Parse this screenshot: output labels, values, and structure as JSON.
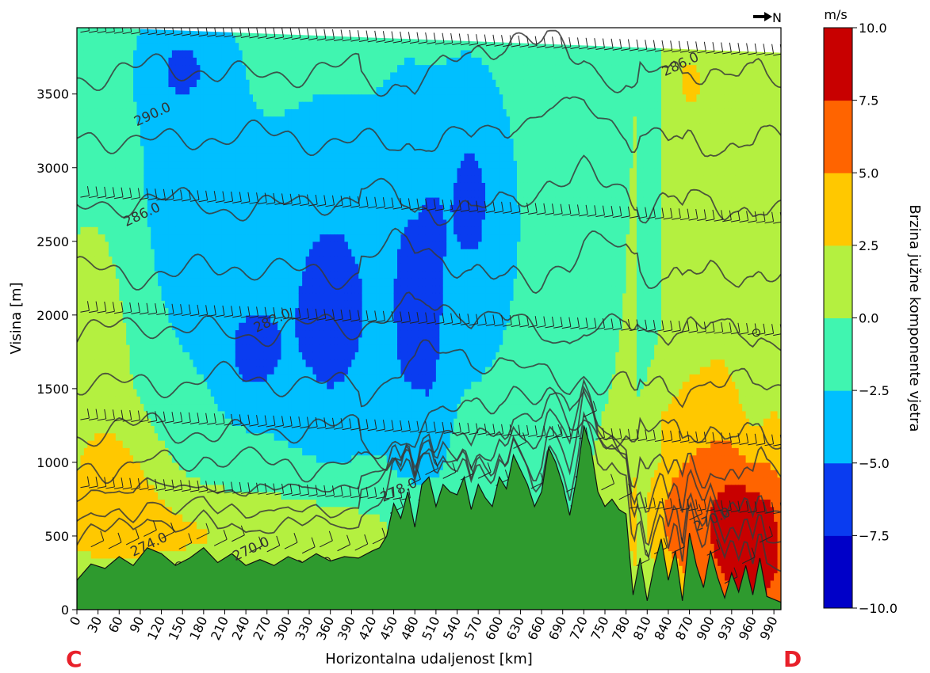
{
  "chart_data": {
    "type": "heatmap",
    "xlabel": "Horizontalna udaljenost [km]",
    "ylabel": "Visina [m]",
    "xlim": [
      0,
      1000
    ],
    "ylim": [
      0,
      3950
    ],
    "x_ticks": [
      0,
      30,
      60,
      90,
      120,
      150,
      180,
      210,
      240,
      270,
      300,
      330,
      360,
      390,
      420,
      450,
      480,
      510,
      540,
      570,
      600,
      630,
      660,
      690,
      720,
      750,
      780,
      810,
      840,
      870,
      900,
      930,
      960,
      990
    ],
    "y_ticks": [
      0,
      500,
      1000,
      1500,
      2000,
      2500,
      3000,
      3500
    ],
    "colorbar": {
      "unit": "m/s",
      "label": "Brzina južne komponente vjetra",
      "ticks": [
        "10.0",
        "7.5",
        "5.0",
        "2.5",
        "0.0",
        "−2.5",
        "−5.0",
        "−7.5",
        "−10.0"
      ],
      "levels": [
        -10,
        -7.5,
        -5,
        -2.5,
        0,
        2.5,
        5,
        7.5,
        10
      ],
      "colors": [
        "#0000c8",
        "#0a3cf0",
        "#00bfff",
        "#40f5b0",
        "#b4f040",
        "#ffc800",
        "#ff6400",
        "#c80000"
      ]
    },
    "isentrope_labels": [
      {
        "text": "290.0",
        "x": 85,
        "y": 3280
      },
      {
        "text": "286.0",
        "x": 70,
        "y": 2600
      },
      {
        "text": "286.0",
        "x": 835,
        "y": 3620
      },
      {
        "text": "282.0",
        "x": 255,
        "y": 1880
      },
      {
        "text": "278.0",
        "x": 435,
        "y": 730
      },
      {
        "text": "274.0",
        "x": 80,
        "y": 360
      },
      {
        "text": "270.0",
        "x": 225,
        "y": 330
      },
      {
        "text": "270.0",
        "x": 880,
        "y": 530
      }
    ],
    "terrain": {
      "x": [
        0,
        20,
        40,
        60,
        80,
        100,
        120,
        140,
        160,
        180,
        200,
        220,
        240,
        260,
        280,
        300,
        320,
        340,
        360,
        380,
        400,
        420,
        430,
        440,
        450,
        460,
        470,
        480,
        490,
        500,
        510,
        520,
        530,
        540,
        550,
        560,
        570,
        580,
        590,
        600,
        610,
        620,
        630,
        640,
        650,
        660,
        670,
        680,
        690,
        700,
        710,
        720,
        730,
        740,
        750,
        760,
        770,
        780,
        790,
        800,
        810,
        820,
        830,
        840,
        850,
        860,
        870,
        880,
        890,
        900,
        910,
        920,
        930,
        940,
        950,
        960,
        970,
        980,
        1000
      ],
      "y": [
        200,
        310,
        280,
        360,
        300,
        420,
        380,
        300,
        350,
        420,
        320,
        380,
        300,
        340,
        300,
        360,
        320,
        380,
        330,
        360,
        350,
        400,
        420,
        500,
        720,
        620,
        800,
        560,
        850,
        900,
        700,
        850,
        800,
        780,
        900,
        680,
        850,
        760,
        700,
        900,
        820,
        1050,
        950,
        850,
        700,
        800,
        1100,
        1000,
        850,
        640,
        900,
        1250,
        1100,
        800,
        700,
        750,
        680,
        650,
        100,
        350,
        60,
        300,
        480,
        200,
        400,
        60,
        520,
        300,
        150,
        400,
        220,
        80,
        250,
        120,
        300,
        100,
        350,
        90,
        50
      ]
    }
  },
  "labels": {
    "north": "N",
    "left_point": "C",
    "right_point": "D"
  },
  "colors": {
    "terrain": "#2e9a2e",
    "isentrope": "#3a3a3a",
    "corner": "#e8202a"
  }
}
